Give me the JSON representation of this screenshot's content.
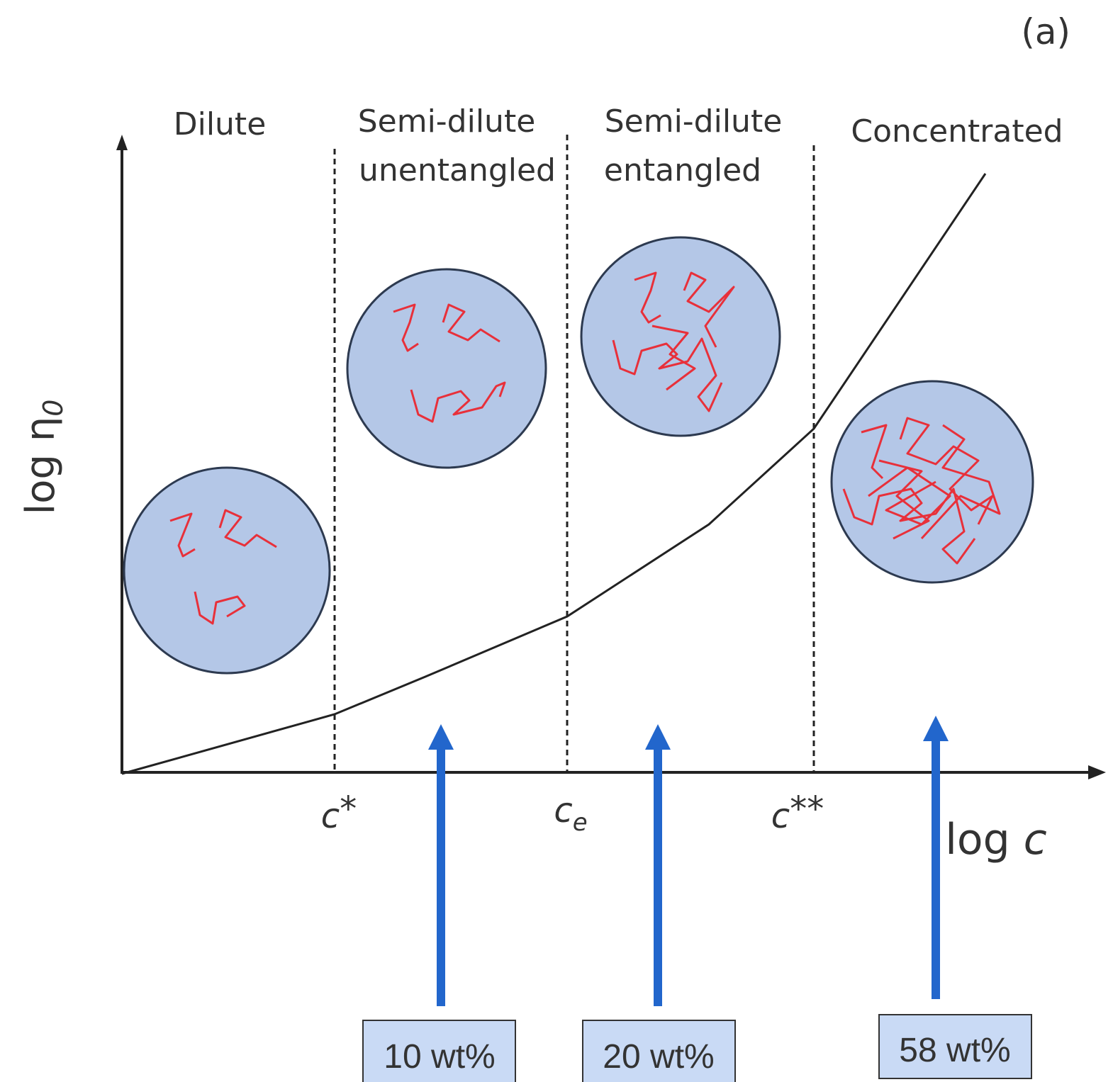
{
  "panel_label": "(a)",
  "regions": [
    {
      "lines": [
        "Dilute"
      ]
    },
    {
      "lines": [
        "Semi-dilute",
        "unentangled"
      ]
    },
    {
      "lines": [
        "Semi-dilute",
        "entangled"
      ]
    },
    {
      "lines": [
        "Concentrated"
      ]
    }
  ],
  "y_axis_label": {
    "text": "log η",
    "subscript": "0"
  },
  "x_axis_label": {
    "text": "log ",
    "symbol": "c"
  },
  "thresholds": [
    {
      "symbol": "c",
      "mark": "*"
    },
    {
      "symbol": "c",
      "subscript": "e"
    },
    {
      "symbol": "c",
      "mark": "**"
    }
  ],
  "samples": [
    "10 wt%",
    "20 wt%",
    "58 wt%"
  ]
}
